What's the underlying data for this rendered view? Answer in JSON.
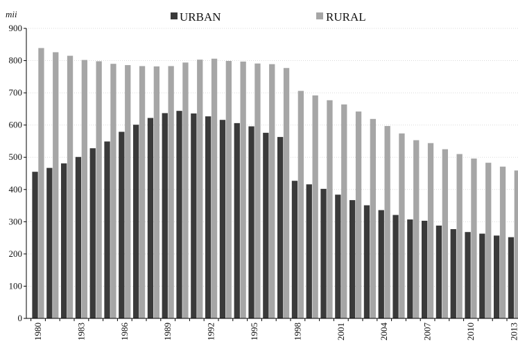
{
  "chart_data": {
    "type": "bar",
    "unit_label": "mii",
    "categories": [
      "1980",
      "1981",
      "1982",
      "1983",
      "1984",
      "1985",
      "1986",
      "1987",
      "1988",
      "1989",
      "1990",
      "1991",
      "1992",
      "1993",
      "1994",
      "1995",
      "1996",
      "1997",
      "1998",
      "1999",
      "2000",
      "2001",
      "2002",
      "2003",
      "2004",
      "2005",
      "2006",
      "2007",
      "2008",
      "2009",
      "2010",
      "2011",
      "2012",
      "2013"
    ],
    "tick_labels": [
      "1980",
      "1983",
      "1986",
      "1989",
      "1992",
      "1995",
      "1998",
      "2001",
      "2004",
      "2007",
      "2010",
      "2013"
    ],
    "series": [
      {
        "name": "URBAN",
        "color": "#3a3a3a",
        "values": [
          455,
          467,
          481,
          501,
          528,
          549,
          579,
          601,
          622,
          637,
          644,
          636,
          627,
          616,
          606,
          596,
          576,
          563,
          427,
          416,
          402,
          384,
          367,
          351,
          336,
          321,
          307,
          303,
          288,
          277,
          268,
          263,
          257,
          252
        ]
      },
      {
        "name": "RURAL",
        "color": "#a6a6a6",
        "values": [
          839,
          826,
          815,
          802,
          798,
          790,
          786,
          783,
          782,
          783,
          794,
          803,
          806,
          799,
          797,
          791,
          789,
          777,
          706,
          692,
          677,
          664,
          642,
          619,
          597,
          574,
          553,
          544,
          525,
          510,
          496,
          483,
          471,
          459
        ]
      }
    ],
    "y_ticks": [
      0,
      100,
      200,
      300,
      400,
      500,
      600,
      700,
      800,
      900
    ],
    "ylim": [
      0,
      900
    ],
    "grid": true,
    "legend_position": "top"
  }
}
